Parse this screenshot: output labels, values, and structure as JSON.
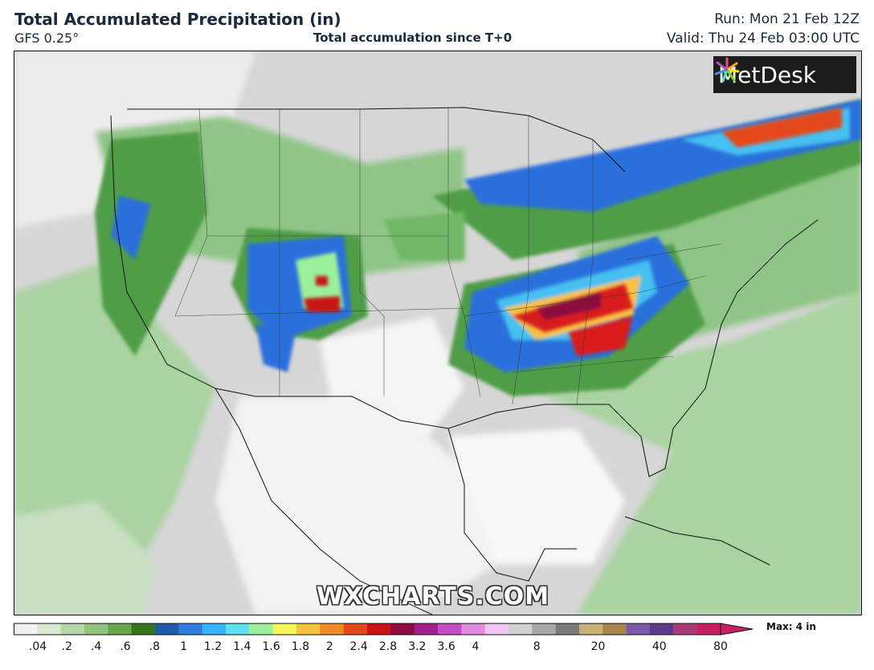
{
  "header": {
    "title": "Total Accumulated Precipitation (in)",
    "model": "GFS 0.25°",
    "subtitle": "Total accumulation since T+0",
    "run": "Run: Mon 21 Feb 12Z",
    "valid": "Valid: Thu 24 Feb 03:00 UTC"
  },
  "logo": {
    "text": "MetDesk"
  },
  "watermark": {
    "text": "WXCHARTS.COM"
  },
  "legend": {
    "max_label": "Max: 4 in",
    "ticks": [
      ".04",
      ".2",
      ".4",
      ".6",
      ".8",
      "1",
      "1.2",
      "1.4",
      "1.6",
      "1.8",
      "2",
      "2.4",
      "2.8",
      "3.2",
      "3.6",
      "4",
      "8",
      "20",
      "40",
      "80"
    ],
    "colors": [
      "#f2f2f2",
      "#d9ead3",
      "#b6d7a8",
      "#93c47d",
      "#6aa84f",
      "#38761d",
      "#1e5aa8",
      "#2f7de1",
      "#36b4ff",
      "#5fe0f0",
      "#9bf09b",
      "#f6f65a",
      "#f5c242",
      "#f08a24",
      "#e34a1a",
      "#c81414",
      "#8c0a3c",
      "#a0208c",
      "#c44cc4",
      "#e08ae0",
      "#f2c6f2",
      "#d0d0d0",
      "#a8a8a8",
      "#7a7a7a",
      "#c8b078",
      "#a8864a",
      "#7a5aa8",
      "#5a3a8c",
      "#a83a7a",
      "#c82060"
    ]
  }
}
